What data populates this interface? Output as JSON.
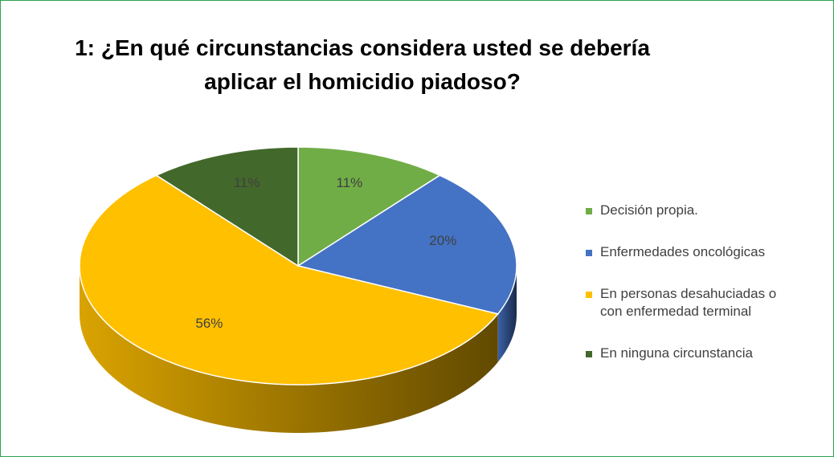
{
  "chart_data": {
    "type": "pie3d",
    "title": "1: ¿En qué circunstancias considera usted se debería\naplicar el homicidio piadoso?",
    "categories": [
      "Decisión propia.",
      "Enfermedades oncológicas",
      "En personas desahuciadas o con enfermedad terminal",
      "En ninguna circunstancia"
    ],
    "values": [
      11,
      20,
      56,
      11
    ],
    "value_labels": [
      "11%",
      "20%",
      "56%",
      "11%"
    ],
    "colors": [
      "#70ad47",
      "#4472c4",
      "#ffc000",
      "#43682b"
    ],
    "legend": "right"
  }
}
